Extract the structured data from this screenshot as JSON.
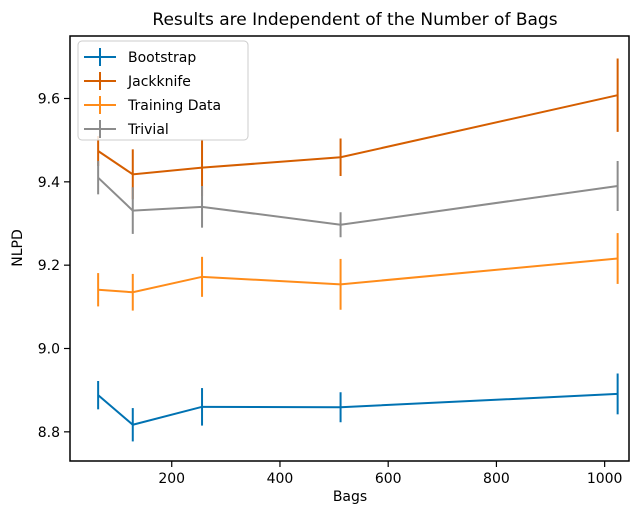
{
  "chart_data": {
    "type": "line",
    "title": "Results are Independent of the Number of Bags",
    "xlabel": "Bags",
    "ylabel": "NLPD",
    "xlim": [
      12,
      1045
    ],
    "ylim": [
      8.73,
      9.75
    ],
    "xticks": [
      200,
      400,
      600,
      800,
      1000
    ],
    "yticks": [
      8.8,
      9.0,
      9.2,
      9.4,
      9.6
    ],
    "xtick_labels": [
      "200",
      "400",
      "600",
      "800",
      "1000"
    ],
    "ytick_labels": [
      "8.8",
      "9.0",
      "9.2",
      "9.4",
      "9.6"
    ],
    "grid": false,
    "legend_position": "top-left",
    "x": [
      64,
      128,
      256,
      512,
      1024
    ],
    "series": [
      {
        "name": "Bootstrap",
        "color": "#0072b2",
        "values": [
          8.888,
          8.817,
          8.86,
          8.859,
          8.891
        ],
        "errors": [
          0.034,
          0.04,
          0.045,
          0.036,
          0.049
        ]
      },
      {
        "name": "Jackknife",
        "color": "#d55e00",
        "values": [
          9.474,
          9.418,
          9.434,
          9.459,
          9.608
        ],
        "errors": [
          0.036,
          0.06,
          0.068,
          0.045,
          0.088
        ]
      },
      {
        "name": "Training Data",
        "color": "#ff8c1a",
        "values": [
          9.141,
          9.135,
          9.172,
          9.154,
          9.216
        ],
        "errors": [
          0.04,
          0.044,
          0.048,
          0.061,
          0.061
        ]
      },
      {
        "name": "Trivial",
        "color": "#8c8c8c",
        "values": [
          9.41,
          9.331,
          9.34,
          9.297,
          9.39
        ],
        "errors": [
          0.04,
          0.056,
          0.05,
          0.03,
          0.06
        ]
      }
    ]
  }
}
